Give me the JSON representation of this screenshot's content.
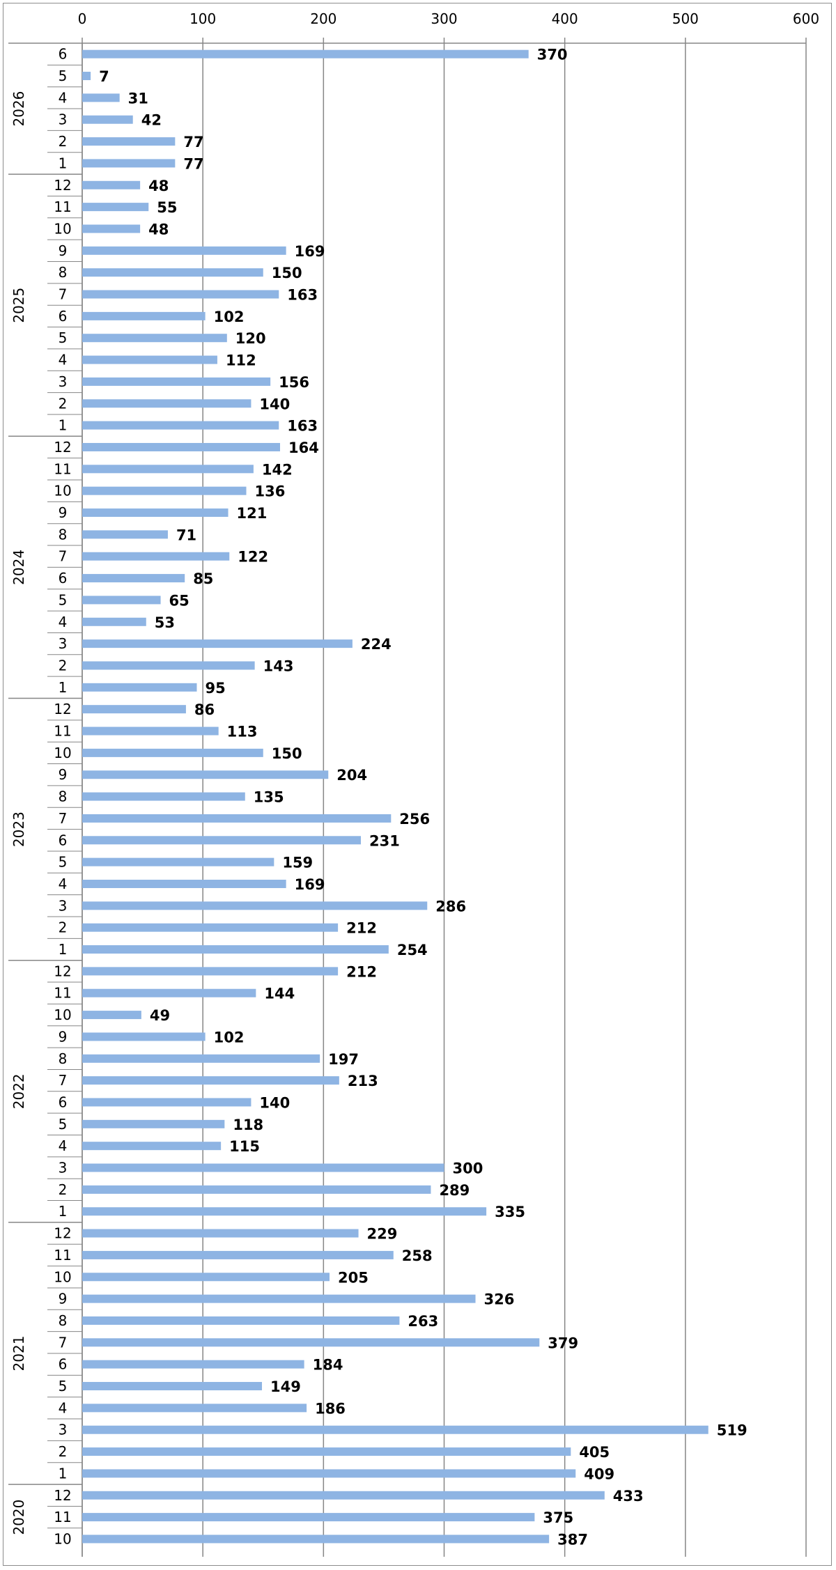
{
  "chart_data": {
    "type": "bar",
    "orientation": "horizontal",
    "xlim": [
      0,
      600
    ],
    "x_ticks": [
      0,
      100,
      200,
      300,
      400,
      500,
      600
    ],
    "x_axis_position": "top",
    "grid": true,
    "legend": "none",
    "bar_color": "#8eb4e3",
    "groups": [
      {
        "year": "2026",
        "categories": [
          "6",
          "5",
          "4",
          "3",
          "2",
          "1"
        ],
        "values": [
          370,
          7,
          31,
          42,
          77,
          77
        ]
      },
      {
        "year": "2025",
        "categories": [
          "12",
          "11",
          "10",
          "9",
          "8",
          "7",
          "6",
          "5",
          "4",
          "3",
          "2",
          "1"
        ],
        "values": [
          48,
          55,
          48,
          169,
          150,
          163,
          102,
          120,
          112,
          156,
          140,
          163
        ]
      },
      {
        "year": "2024",
        "categories": [
          "12",
          "11",
          "10",
          "9",
          "8",
          "7",
          "6",
          "5",
          "4",
          "3",
          "2",
          "1"
        ],
        "values": [
          164,
          142,
          136,
          121,
          71,
          122,
          85,
          65,
          53,
          224,
          143,
          95
        ]
      },
      {
        "year": "2023",
        "categories": [
          "12",
          "11",
          "10",
          "9",
          "8",
          "7",
          "6",
          "5",
          "4",
          "3",
          "2",
          "1"
        ],
        "values": [
          86,
          113,
          150,
          204,
          135,
          256,
          231,
          159,
          169,
          286,
          212,
          254
        ]
      },
      {
        "year": "2022",
        "categories": [
          "12",
          "11",
          "10",
          "9",
          "8",
          "7",
          "6",
          "5",
          "4",
          "3",
          "2",
          "1"
        ],
        "values": [
          212,
          144,
          49,
          102,
          197,
          213,
          140,
          118,
          115,
          300,
          289,
          335
        ]
      },
      {
        "year": "2021",
        "categories": [
          "12",
          "11",
          "10",
          "9",
          "8",
          "7",
          "6",
          "5",
          "4",
          "3",
          "2",
          "1"
        ],
        "values": [
          229,
          258,
          205,
          326,
          263,
          379,
          184,
          149,
          186,
          519,
          405,
          409
        ]
      },
      {
        "year": "2020",
        "categories": [
          "12",
          "11",
          "10"
        ],
        "values": [
          433,
          375,
          387
        ]
      }
    ]
  }
}
